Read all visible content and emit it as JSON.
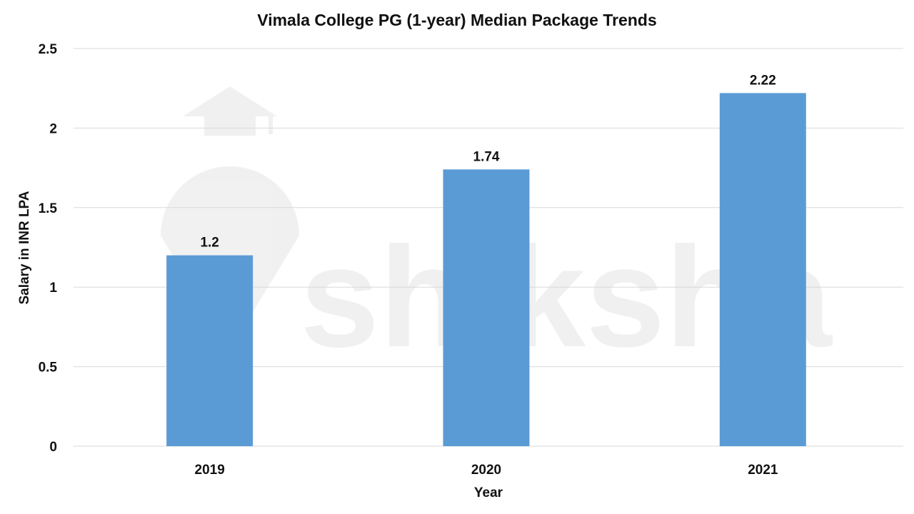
{
  "chart_data": {
    "type": "bar",
    "title": "Vimala College PG (1-year) Median Package Trends",
    "xlabel": "Year",
    "ylabel": "Salary in INR LPA",
    "categories": [
      "2019",
      "2020",
      "2021"
    ],
    "values": [
      1.2,
      1.74,
      2.22
    ],
    "data_labels": [
      "1.2",
      "1.74",
      "2.22"
    ],
    "ylim": [
      0,
      2.5
    ],
    "yticks": [
      "0",
      "0.5",
      "1",
      "1.5",
      "2",
      "2.5"
    ],
    "grid": true,
    "legend": "none",
    "bar_color": "#5B9BD5",
    "gridline_color": "#D9D9D9",
    "watermark": "shiksha"
  }
}
